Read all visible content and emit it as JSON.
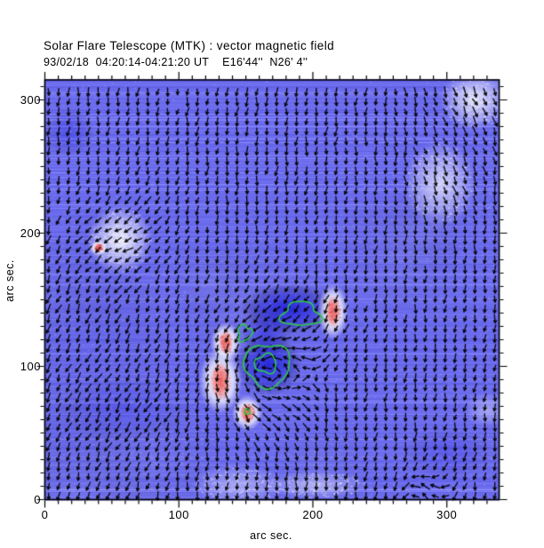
{
  "header": {
    "title": "Solar Flare Telescope (MTK) : vector magnetic field",
    "subtitle": "93/02/18  04:20:14-04:21:20 UT    E16'44''  N26' 4''"
  },
  "chart_data": {
    "type": "heatmap",
    "subtype": "vector-magnetic-field-map",
    "title": "Solar Flare Telescope (MTK) : vector magnetic field",
    "subtitle": "93/02/18  04:20:14-04:21:20 UT    E16'44''  N26' 4''",
    "xlabel": "arc sec.",
    "ylabel": "arc sec.",
    "xlim": [
      0,
      339
    ],
    "ylim": [
      0,
      315
    ],
    "x_ticks": [
      0,
      100,
      200,
      300
    ],
    "y_ticks": [
      0,
      100,
      200,
      300
    ],
    "minor_tick_step": 10,
    "grid": false,
    "colors": {
      "background_field": "#6c6cec",
      "dark_field": "#1c1cd6",
      "strong_spot": "#ee6a6a",
      "weak_patch": "#ffffff",
      "contour": "#2ecc40",
      "vector": "#000000",
      "frame": "#000000"
    },
    "vector_grid": {
      "spacing_arcsec": 7.4,
      "base_length_arcsec": 6.2,
      "base_direction_deg_screen": 97
    },
    "flow_influencers": [
      {
        "name": "bottom-left-downflow",
        "x": 59,
        "y": 68,
        "angle": 137,
        "radius": 37,
        "strength": 1.0
      },
      {
        "name": "left-white-patch-upflow",
        "x": 56,
        "y": 195,
        "angle": 230,
        "radius": 30,
        "strength": 0.6
      },
      {
        "name": "top-right-corner-flow",
        "x": 321,
        "y": 300,
        "angle": 40,
        "radius": 32,
        "strength": 0.9
      },
      {
        "name": "right-patch-flow",
        "x": 295,
        "y": 237,
        "angle": 50,
        "radius": 27,
        "strength": 0.6
      },
      {
        "name": "bottom-right-upflow",
        "x": 285,
        "y": 5,
        "angle": -93,
        "radius": 23,
        "strength": 0.8
      },
      {
        "name": "top-center-downflow",
        "x": 179,
        "y": 241,
        "angle": 88,
        "radius": 40,
        "strength": 0.3
      },
      {
        "name": "left-mid-flow",
        "x": 6,
        "y": 141,
        "angle": 130,
        "radius": 33,
        "strength": 0.5
      }
    ],
    "vortex": {
      "name": "central-vortex",
      "x": 163,
      "y": 97,
      "radius": 37,
      "strength": 1.1,
      "sense": "ccw-screen"
    },
    "dark_regions": [
      {
        "name": "central-dark-core-upper",
        "x": 182,
        "y": 143,
        "rx": 25,
        "ry": 13,
        "alpha": 0.82
      },
      {
        "name": "central-dark-core-lower",
        "x": 167,
        "y": 101,
        "rx": 17,
        "ry": 16,
        "alpha": 0.8
      },
      {
        "name": "central-dark-bridge",
        "x": 165,
        "y": 125,
        "rx": 13,
        "ry": 13,
        "alpha": 0.45
      },
      {
        "name": "top-left-smudge",
        "x": 18,
        "y": 276,
        "rx": 13,
        "ry": 12,
        "alpha": 0.3
      },
      {
        "name": "bottom-right-smudge",
        "x": 301,
        "y": 35,
        "rx": 23,
        "ry": 13,
        "alpha": 0.22
      },
      {
        "name": "bottom-left-band",
        "x": 59,
        "y": 68,
        "rx": 36,
        "ry": 17,
        "alpha": 0.18
      }
    ],
    "white_patches": [
      {
        "name": "left-plage-patch",
        "x": 56,
        "y": 195,
        "rx": 19,
        "ry": 20,
        "alpha": 0.95,
        "mottled": true
      },
      {
        "name": "top-right-corner-patch",
        "x": 321,
        "y": 300,
        "rx": 20,
        "ry": 17,
        "alpha": 0.85,
        "mottled": true
      },
      {
        "name": "right-plage-patch",
        "x": 295,
        "y": 237,
        "rx": 21,
        "ry": 25,
        "alpha": 0.7,
        "mottled": true
      },
      {
        "name": "bottom-center-patch",
        "x": 144,
        "y": 11,
        "rx": 27,
        "ry": 12,
        "alpha": 0.45,
        "mottled": true
      },
      {
        "name": "bottom-streak-patch",
        "x": 202,
        "y": 11,
        "rx": 30,
        "ry": 8,
        "alpha": 0.5,
        "mottled": true
      },
      {
        "name": "right-edge-light-patch",
        "x": 330,
        "y": 67,
        "rx": 13,
        "ry": 10,
        "alpha": 0.4,
        "mottled": false
      }
    ],
    "red_spots": [
      {
        "name": "spot-1",
        "x": 135,
        "y": 118,
        "rx": 5,
        "ry": 8
      },
      {
        "name": "spot-2",
        "x": 131,
        "y": 89,
        "rx": 7,
        "ry": 13
      },
      {
        "name": "spot-3",
        "x": 151,
        "y": 65,
        "rx": 5,
        "ry": 7
      },
      {
        "name": "spot-4",
        "x": 215,
        "y": 141,
        "rx": 5,
        "ry": 11
      },
      {
        "name": "faint-spot-left",
        "x": 40,
        "y": 189,
        "rx": 3,
        "ry": 3
      }
    ],
    "green_contours": [
      {
        "name": "elongated-contour",
        "x": 191,
        "y": 139,
        "rx": 14,
        "ry": 9,
        "irr": 0.17
      },
      {
        "name": "small-contour",
        "x": 149,
        "y": 125,
        "rx": 5,
        "ry": 6,
        "irr": 0.2
      },
      {
        "name": "outer-ring-contour",
        "x": 166,
        "y": 101,
        "rx": 17,
        "ry": 16,
        "irr": 0.1
      },
      {
        "name": "inner-ring-contour",
        "x": 165,
        "y": 102,
        "rx": 8,
        "ry": 7,
        "irr": 0.14
      },
      {
        "name": "tiny-spot-contour",
        "x": 151,
        "y": 66,
        "rx": 2,
        "ry": 2,
        "irr": 0.1
      }
    ]
  }
}
